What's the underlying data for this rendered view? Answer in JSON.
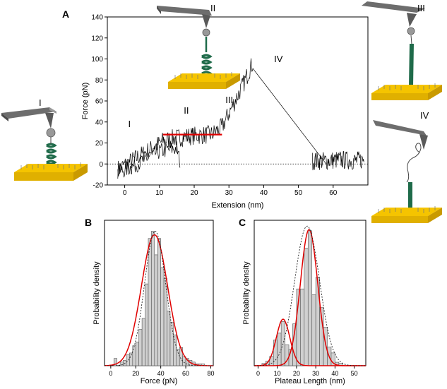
{
  "panels": {
    "a": {
      "label": "A"
    },
    "b": {
      "label": "B"
    },
    "c": {
      "label": "C"
    }
  },
  "stage_labels": {
    "roman_1": "I",
    "roman_2": "II",
    "roman_3": "III",
    "roman_4": "IV"
  },
  "colors": {
    "gold": "#f5c400",
    "gold_side": "#c99a00",
    "cantilever": "#6d6d6d",
    "protein": "#1f6b4a",
    "fit": "#e00000",
    "bar": "#d0d0d0"
  },
  "chart_data": [
    {
      "type": "line",
      "panel": "A",
      "title": "",
      "xlabel": "Extension (nm)",
      "ylabel": "Force (pN)",
      "xlim": [
        -5,
        70
      ],
      "ylim": [
        -20,
        140
      ],
      "xticks": [
        0,
        10,
        20,
        30,
        40,
        50,
        60
      ],
      "yticks": [
        -20,
        0,
        20,
        40,
        60,
        80,
        100,
        120,
        140
      ],
      "series": [
        {
          "name": "retraction trace",
          "x": [
            -2,
            3,
            8,
            11,
            15,
            20,
            25,
            28,
            31,
            34,
            36,
            37,
            58
          ],
          "y": [
            -5,
            5,
            15,
            22,
            25,
            27,
            28,
            35,
            55,
            75,
            90,
            97,
            0
          ]
        },
        {
          "name": "relaxation trace",
          "x": [
            -2,
            2,
            6,
            10,
            15,
            16
          ],
          "y": [
            -8,
            -3,
            5,
            12,
            15,
            0
          ]
        },
        {
          "name": "baseline noise",
          "x": [
            54,
            58,
            62,
            66,
            69
          ],
          "y": [
            3,
            3,
            4,
            3,
            4
          ]
        },
        {
          "name": "plateau fit",
          "x": [
            11,
            28
          ],
          "y": [
            28,
            28
          ]
        }
      ],
      "annotations": [
        {
          "text": "I",
          "x": 1,
          "y": 35
        },
        {
          "text": "II",
          "x": 17,
          "y": 48
        },
        {
          "text": "III",
          "x": 29,
          "y": 58
        },
        {
          "text": "IV",
          "x": 43,
          "y": 97
        }
      ]
    },
    {
      "type": "bar",
      "panel": "B",
      "title": "",
      "xlabel": "Force (pN)",
      "ylabel": "Probability density",
      "xlim": [
        -5,
        82
      ],
      "xticks": [
        0,
        20,
        40,
        60,
        80
      ],
      "bin_width": 2.5,
      "bin_starts": [
        2.5,
        5,
        7.5,
        10,
        12.5,
        15,
        17.5,
        20,
        22.5,
        25,
        27.5,
        30,
        32.5,
        35,
        37.5,
        40,
        42.5,
        45,
        47.5,
        50,
        52.5,
        55,
        57.5,
        60,
        62.5,
        65,
        67.5,
        70,
        72.5
      ],
      "values": [
        0.004,
        0,
        0.002,
        0.003,
        0.006,
        0.007,
        0.011,
        0.013,
        0.02,
        0.026,
        0.045,
        0.07,
        0.074,
        0.061,
        0.07,
        0.054,
        0.048,
        0.03,
        0.024,
        0.017,
        0.009,
        0.01,
        0.005,
        0.004,
        0.003,
        0.002,
        0.001,
        0.001,
        0.001
      ],
      "ylim": [
        0,
        0.08
      ],
      "fits": [
        {
          "name": "gaussian fit",
          "mean": 35,
          "sd": 10.5,
          "peak": 0.072
        },
        {
          "name": "dashed fit",
          "mean": 35.5,
          "sd": 8.5,
          "peak": 0.074
        }
      ]
    },
    {
      "type": "bar",
      "panel": "C",
      "title": "",
      "xlabel": "Plateau Length (nm)",
      "ylabel": "Probability density",
      "xlim": [
        -2,
        56
      ],
      "xticks": [
        0,
        10,
        20,
        30,
        40,
        50
      ],
      "bin_width": 2,
      "bin_starts": [
        2,
        4,
        6,
        8,
        10,
        12,
        14,
        16,
        18,
        20,
        22,
        24,
        26,
        28,
        30,
        32,
        34,
        36,
        38,
        40,
        42
      ],
      "values": [
        0.002,
        0.004,
        0.008,
        0.022,
        0.028,
        0.038,
        0.018,
        0.014,
        0.036,
        0.066,
        0.066,
        0.101,
        0.116,
        0.061,
        0.076,
        0.05,
        0.033,
        0.016,
        0.011,
        0.003,
        0.002
      ],
      "ylim": [
        0,
        0.125
      ],
      "fits": [
        {
          "name": "gaussian fit 1",
          "mean": 13,
          "sd": 3.5,
          "peak": 0.04
        },
        {
          "name": "gaussian fit 2",
          "mean": 26.5,
          "sd": 4.5,
          "peak": 0.117
        },
        {
          "name": "dashed fit",
          "mean": 25.5,
          "sd": 6.5,
          "peak": 0.12
        }
      ]
    }
  ]
}
